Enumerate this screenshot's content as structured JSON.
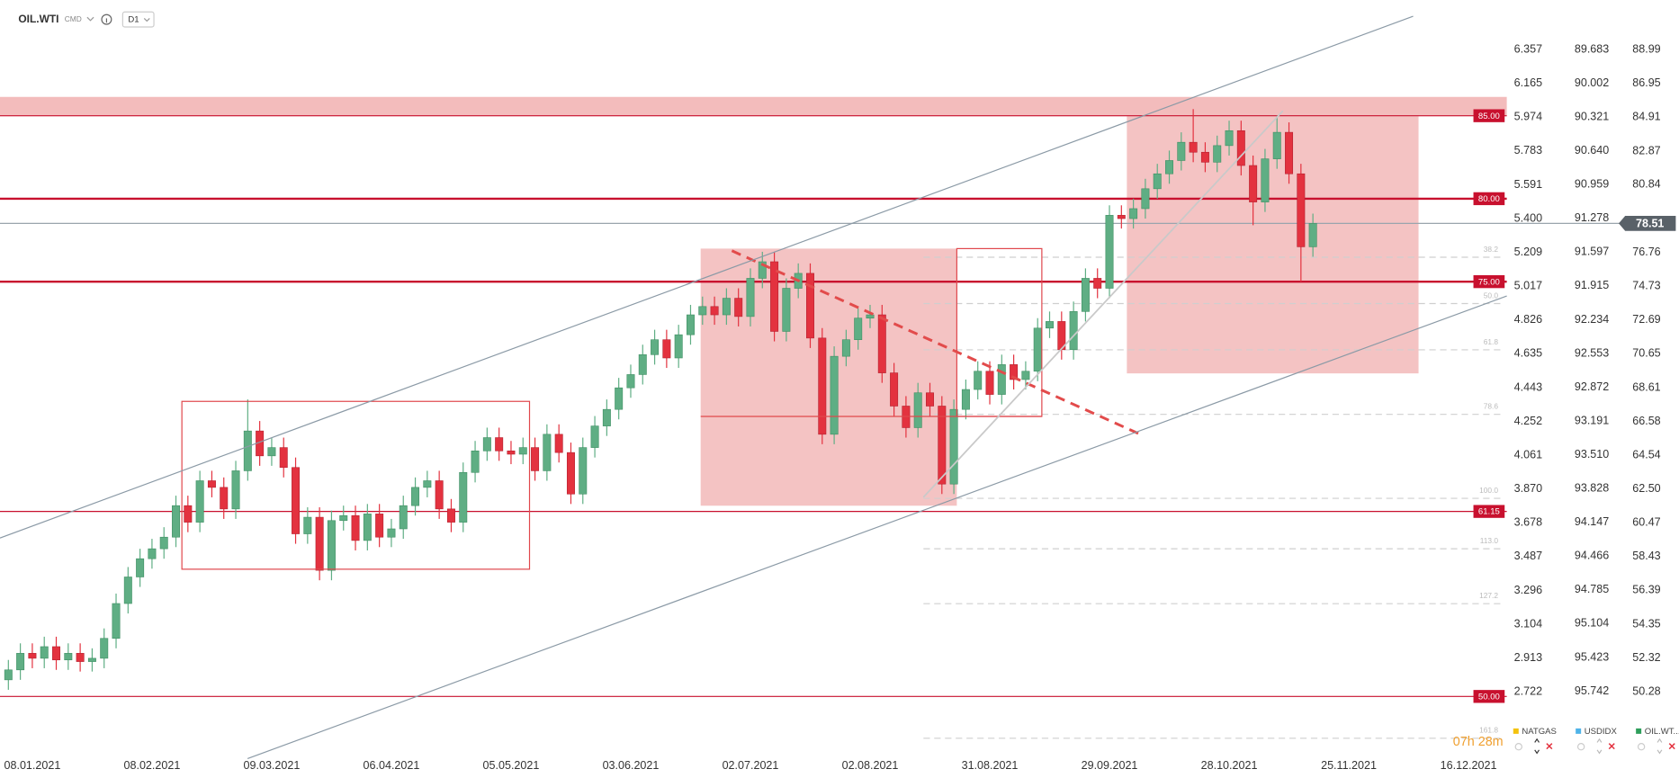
{
  "header": {
    "symbol": "OIL.WTI",
    "market": "CMD",
    "timeframe": "D1"
  },
  "chart_data": {
    "type": "candlestick",
    "x": [
      0,
      2,
      4,
      6,
      8,
      10,
      12,
      14,
      16,
      18,
      20,
      22,
      24,
      26,
      28,
      30,
      32,
      34,
      36,
      38,
      40,
      42,
      44,
      46,
      48,
      50,
      52,
      54,
      56,
      58,
      60,
      62,
      64,
      66,
      68,
      70,
      72,
      74,
      76,
      78,
      80,
      82,
      84,
      86,
      88,
      90,
      92,
      94,
      96,
      98,
      100,
      102,
      104,
      106,
      108,
      110,
      112,
      114,
      116,
      118,
      120,
      122,
      124,
      126,
      128,
      130,
      132,
      134,
      136,
      138,
      140,
      142,
      144,
      146,
      148,
      150,
      152,
      154,
      156,
      158,
      160,
      162,
      164,
      166,
      168,
      170,
      172,
      174,
      176,
      178,
      180,
      182,
      184,
      186,
      188,
      190,
      192,
      194,
      196,
      198,
      200,
      202,
      204,
      206,
      208,
      210,
      212,
      214,
      216,
      218
    ],
    "open": [
      51.0,
      51.6,
      52.6,
      52.3,
      53.0,
      52.2,
      52.6,
      52.1,
      52.3,
      53.5,
      55.6,
      57.2,
      58.3,
      58.9,
      59.6,
      61.5,
      60.5,
      63.0,
      62.6,
      61.3,
      63.6,
      66.0,
      64.5,
      65.0,
      63.8,
      59.8,
      60.8,
      57.6,
      60.6,
      60.9,
      59.4,
      61.0,
      59.6,
      60.1,
      61.5,
      62.6,
      63.0,
      61.3,
      60.5,
      63.5,
      64.8,
      65.6,
      64.8,
      64.6,
      65.0,
      63.6,
      65.8,
      64.7,
      62.2,
      65.0,
      66.3,
      67.3,
      68.6,
      69.4,
      70.6,
      71.5,
      70.4,
      71.8,
      73.0,
      73.5,
      73.0,
      74.0,
      72.9,
      75.2,
      76.2,
      72.0,
      74.6,
      75.5,
      71.6,
      65.8,
      70.5,
      71.5,
      72.8,
      73.0,
      69.5,
      67.5,
      66.2,
      68.3,
      67.5,
      62.8,
      67.3,
      68.5,
      69.6,
      68.2,
      70.0,
      69.1,
      69.6,
      72.2,
      72.6,
      70.9,
      73.2,
      75.2,
      74.6,
      79.0,
      78.8,
      79.4,
      80.6,
      81.5,
      82.3,
      83.4,
      82.8,
      82.2,
      83.2,
      84.1,
      82.0,
      79.8,
      82.4,
      84.0,
      81.5,
      77.1
    ],
    "high": [
      52.2,
      53.2,
      53.2,
      53.6,
      53.6,
      53.2,
      53.2,
      52.9,
      54.1,
      56.2,
      57.8,
      58.9,
      59.5,
      60.2,
      62.1,
      62.1,
      63.6,
      63.6,
      63.2,
      64.2,
      67.9,
      66.6,
      65.6,
      65.6,
      64.4,
      61.4,
      61.4,
      61.2,
      61.5,
      61.5,
      61.6,
      61.6,
      60.7,
      62.1,
      63.2,
      63.6,
      63.6,
      61.9,
      64.1,
      65.4,
      66.2,
      66.2,
      65.4,
      65.6,
      65.6,
      66.4,
      66.4,
      65.3,
      65.6,
      66.9,
      67.9,
      69.2,
      70.0,
      71.2,
      72.1,
      72.1,
      72.4,
      73.6,
      74.1,
      74.1,
      74.6,
      74.6,
      75.8,
      76.8,
      76.8,
      75.2,
      76.1,
      76.1,
      72.2,
      71.1,
      72.1,
      73.4,
      73.6,
      73.6,
      70.1,
      68.1,
      68.9,
      68.9,
      68.1,
      67.9,
      69.1,
      70.2,
      70.2,
      70.6,
      70.6,
      70.2,
      72.8,
      73.2,
      73.2,
      73.8,
      75.8,
      75.8,
      79.6,
      79.6,
      80.0,
      81.2,
      82.1,
      82.9,
      84.0,
      85.4,
      83.4,
      83.8,
      84.7,
      84.7,
      82.6,
      83.0,
      85.0,
      84.6,
      82.1,
      79.1
    ],
    "low": [
      50.4,
      51.0,
      51.7,
      51.7,
      51.6,
      51.6,
      51.5,
      51.5,
      51.7,
      52.9,
      55.0,
      56.6,
      57.7,
      58.3,
      59.0,
      59.9,
      59.9,
      62.0,
      60.7,
      60.7,
      63.0,
      63.9,
      63.9,
      63.2,
      59.2,
      59.2,
      57.0,
      57.0,
      60.0,
      58.8,
      58.8,
      59.0,
      59.0,
      59.5,
      60.9,
      62.0,
      60.7,
      59.9,
      59.9,
      62.9,
      64.2,
      64.2,
      64.0,
      64.0,
      63.0,
      63.0,
      64.1,
      61.6,
      61.6,
      64.4,
      65.7,
      66.7,
      68.0,
      68.8,
      70.0,
      69.8,
      69.8,
      71.2,
      72.4,
      72.4,
      72.4,
      72.3,
      72.3,
      74.6,
      71.4,
      71.4,
      74.0,
      71.0,
      65.2,
      65.2,
      69.9,
      70.9,
      72.2,
      68.9,
      66.9,
      65.6,
      65.6,
      66.9,
      62.2,
      62.2,
      66.7,
      67.9,
      67.6,
      67.6,
      68.5,
      68.5,
      69.0,
      71.6,
      70.3,
      70.3,
      72.6,
      74.0,
      74.0,
      78.2,
      78.2,
      78.8,
      80.0,
      80.9,
      81.7,
      82.2,
      81.6,
      81.6,
      82.6,
      81.4,
      78.4,
      79.2,
      81.8,
      80.9,
      75.0,
      76.5
    ],
    "close": [
      51.6,
      52.6,
      52.3,
      53.0,
      52.2,
      52.6,
      52.1,
      52.3,
      53.5,
      55.6,
      57.2,
      58.3,
      58.9,
      59.6,
      61.5,
      60.5,
      63.0,
      62.6,
      61.3,
      63.6,
      66.0,
      64.5,
      65.0,
      63.8,
      59.8,
      60.8,
      57.6,
      60.6,
      60.9,
      59.4,
      61.0,
      59.6,
      60.1,
      61.5,
      62.6,
      63.0,
      61.3,
      60.5,
      63.5,
      64.8,
      65.6,
      64.8,
      64.6,
      65.0,
      63.6,
      65.8,
      64.7,
      62.2,
      65.0,
      66.3,
      67.3,
      68.6,
      69.4,
      70.6,
      71.5,
      70.4,
      71.8,
      73.0,
      73.5,
      73.0,
      74.0,
      72.9,
      75.2,
      76.2,
      72.0,
      74.6,
      75.5,
      71.6,
      65.8,
      70.5,
      71.5,
      72.8,
      73.0,
      69.5,
      67.5,
      66.2,
      68.3,
      67.5,
      62.8,
      67.3,
      68.5,
      69.6,
      68.2,
      70.0,
      69.1,
      69.6,
      72.2,
      72.6,
      70.9,
      73.2,
      75.2,
      74.6,
      79.0,
      78.8,
      79.4,
      80.6,
      81.5,
      82.3,
      83.4,
      82.8,
      82.2,
      83.2,
      84.1,
      82.0,
      79.8,
      82.4,
      84.0,
      81.5,
      77.1,
      78.51
    ],
    "up_color": "#5fae84",
    "down_color": "#e3323f",
    "xlim": [
      -1.4,
      250.4
    ],
    "xticks": [
      {
        "value": 4,
        "label": "08.01.2021"
      },
      {
        "value": 24,
        "label": "08.02.2021"
      },
      {
        "value": 44,
        "label": "09.03.2021"
      },
      {
        "value": 64,
        "label": "06.04.2021"
      },
      {
        "value": 84,
        "label": "05.05.2021"
      },
      {
        "value": 104,
        "label": "03.06.2021"
      },
      {
        "value": 124,
        "label": "02.07.2021"
      },
      {
        "value": 144,
        "label": "02.08.2021"
      },
      {
        "value": 164,
        "label": "31.08.2021"
      },
      {
        "value": 184,
        "label": "29.09.2021"
      },
      {
        "value": 204,
        "label": "28.10.2021"
      },
      {
        "value": 224,
        "label": "25.11.2021"
      },
      {
        "value": 244,
        "label": "16.12.2021"
      }
    ],
    "ylim": [
      46.58,
      91.97
    ],
    "yticks": [
      88.99,
      86.95,
      84.91,
      82.87,
      80.84,
      76.76,
      74.73,
      72.69,
      70.65,
      68.61,
      66.58,
      64.54,
      {
        "value": 62.5,
        "label": "62.50"
      },
      60.47,
      58.43,
      56.39,
      54.35,
      52.32,
      50.28
    ],
    "y2lim": [
      2.375,
      6.637
    ],
    "y2ticks": [
      6.357,
      6.165,
      5.974,
      5.783,
      5.591,
      {
        "value": 5.4,
        "label": "5.400"
      },
      5.209,
      5.017,
      4.826,
      4.635,
      4.443,
      4.252,
      4.061,
      {
        "value": 3.87,
        "label": "3.870"
      },
      3.678,
      3.487,
      3.296,
      3.104,
      2.913,
      2.722
    ],
    "y3lim": [
      96.327,
      89.216
    ],
    "y3ticks": [
      89.683,
      90.002,
      90.321,
      {
        "value": 90.64,
        "label": "90.640"
      },
      90.959,
      91.278,
      91.597,
      91.915,
      92.234,
      92.553,
      92.872,
      93.191,
      {
        "value": 93.51,
        "label": "93.510"
      },
      93.828,
      94.147,
      94.466,
      94.785,
      95.104,
      95.423,
      95.742
    ],
    "levels": [
      {
        "value": 85,
        "label": "85.00"
      },
      {
        "value": 80,
        "label": "80.00"
      },
      {
        "value": 75,
        "label": "75.00"
      },
      {
        "value": 61.15,
        "label": "61.15"
      },
      {
        "value": 50,
        "label": "50.00"
      }
    ],
    "level_color": "#c8102e",
    "last_price": 78.51,
    "fib": {
      "labels": [
        "38.2",
        "50.0",
        "61.8",
        "78.6",
        "100.0",
        "113.0",
        "127.2",
        "161.8"
      ],
      "prices": [
        76.47,
        73.68,
        70.89,
        67.0,
        61.94,
        58.9,
        55.59,
        47.48
      ]
    },
    "legend": [
      {
        "name": "NATGAS",
        "color": "#f4c20d"
      },
      {
        "name": "USDIDX",
        "color": "#4fb3e8"
      },
      {
        "name": "OIL.WT...",
        "color": "#2e9e5b"
      }
    ],
    "timer": "07h 28m"
  }
}
